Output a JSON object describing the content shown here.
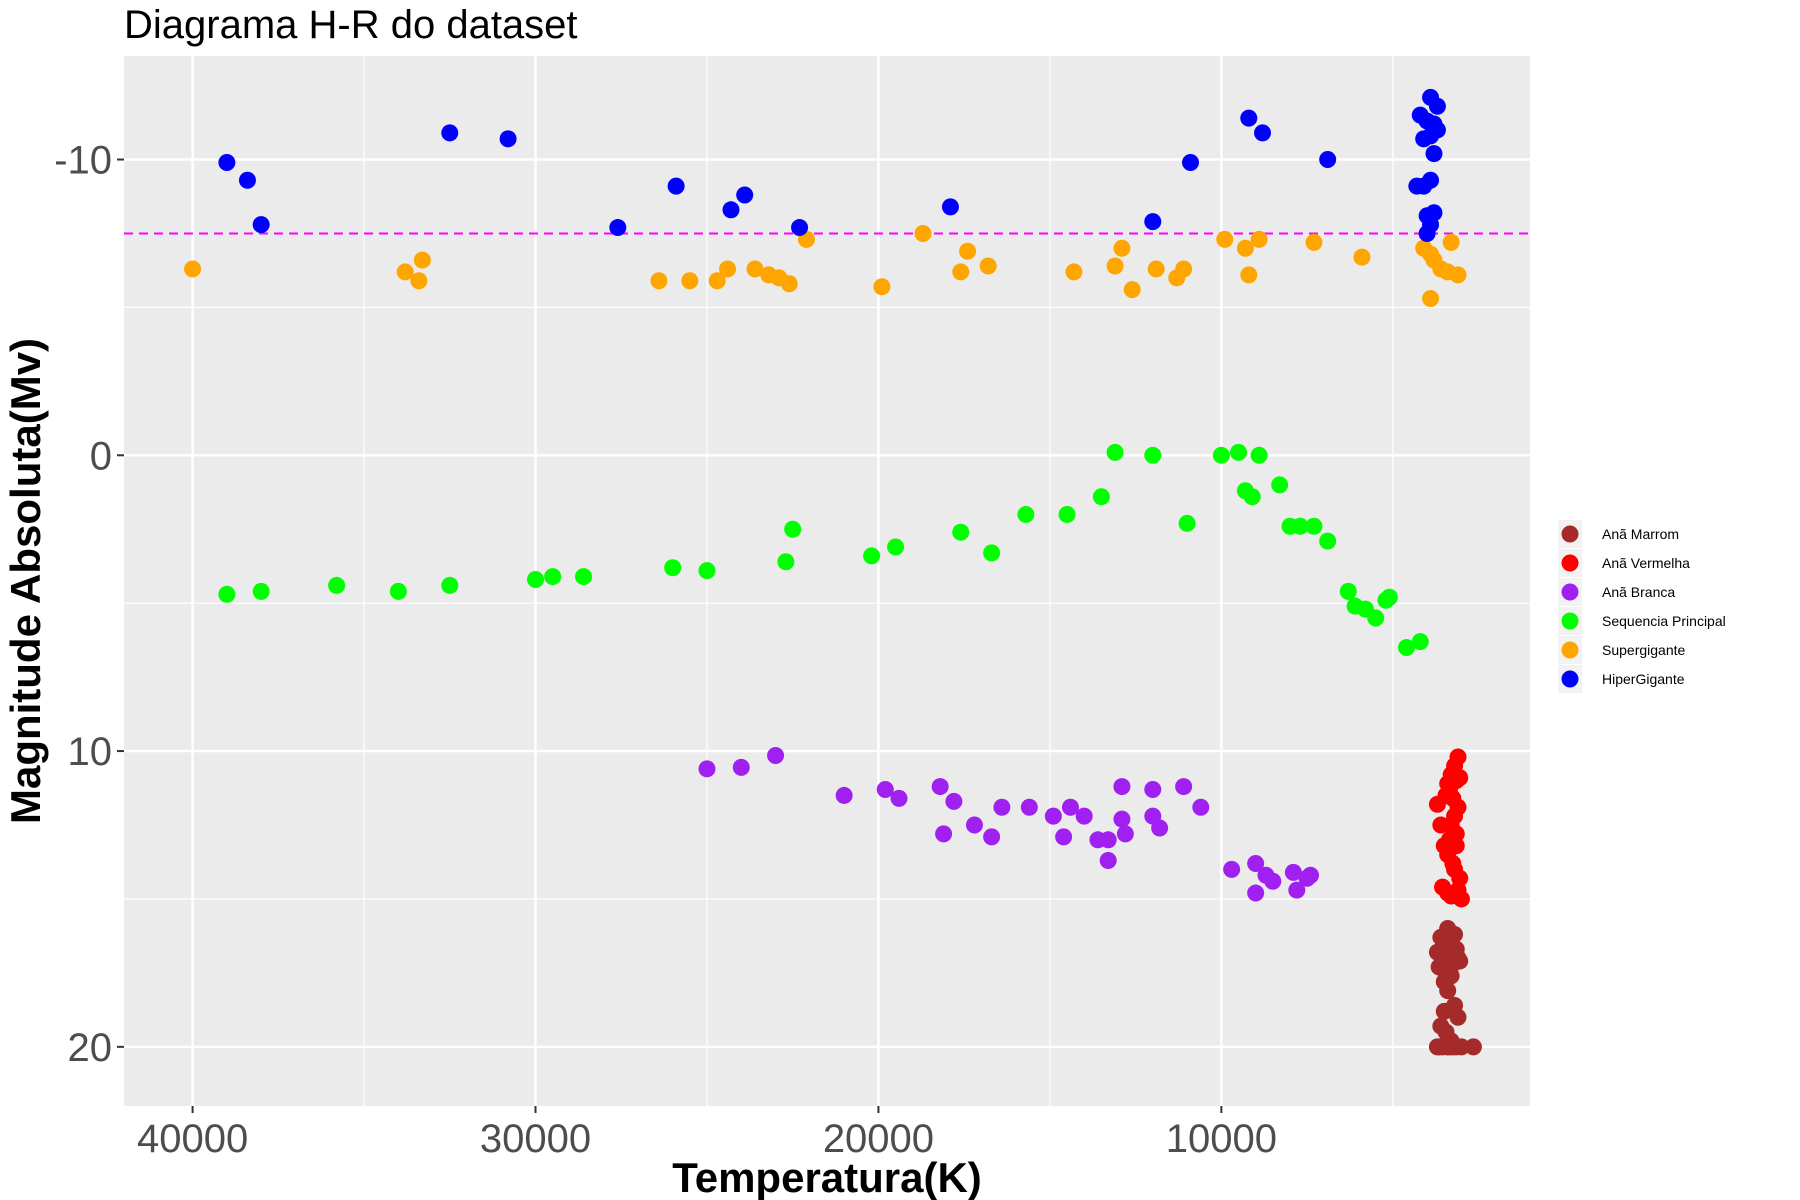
{
  "chart_data": {
    "type": "scatter",
    "title": "Diagrama H-R do dataset",
    "xlabel": "Temperatura(K)",
    "ylabel": "Magnitude Absoluta(Mv)",
    "xlim": [
      42000,
      1000
    ],
    "ylim": [
      22.0,
      -13.5
    ],
    "x_reversed": true,
    "y_reversed": true,
    "x_ticks": [
      40000,
      30000,
      20000,
      10000
    ],
    "x_tick_labels": [
      "40000",
      "30000",
      "20000",
      "10000"
    ],
    "y_ticks": [
      -10,
      0,
      10,
      20
    ],
    "y_tick_labels": [
      "-10",
      "0",
      "10",
      "20"
    ],
    "grid": true,
    "legend_position": "right",
    "reference_line": {
      "orientation": "horizontal",
      "y": -7.5,
      "color": "#ff00ff",
      "style": "dashed"
    },
    "series": [
      {
        "name": "Anã Marrom",
        "color": "#a52a2a",
        "points": [
          [
            3200,
            16.2
          ],
          [
            3300,
            16.5
          ],
          [
            3400,
            16.0
          ],
          [
            3500,
            16.6
          ],
          [
            3600,
            16.3
          ],
          [
            3700,
            16.8
          ],
          [
            3100,
            17.0
          ],
          [
            3250,
            17.2
          ],
          [
            3450,
            17.5
          ],
          [
            3550,
            16.9
          ],
          [
            3350,
            16.4
          ],
          [
            3150,
            16.7
          ],
          [
            3650,
            17.3
          ],
          [
            3050,
            17.1
          ],
          [
            3500,
            17.8
          ],
          [
            3300,
            17.6
          ],
          [
            3400,
            18.1
          ],
          [
            3200,
            18.6
          ],
          [
            3500,
            18.8
          ],
          [
            3100,
            19.0
          ],
          [
            3600,
            19.3
          ],
          [
            3450,
            19.5
          ],
          [
            3300,
            19.8
          ],
          [
            3650,
            20.0
          ],
          [
            3150,
            20.0
          ],
          [
            3400,
            20.0
          ],
          [
            3550,
            20.0
          ],
          [
            3000,
            20.0
          ],
          [
            3700,
            20.0
          ],
          [
            3350,
            20.0
          ],
          [
            2650,
            20.0
          ],
          [
            3250,
            20.0
          ]
        ]
      },
      {
        "name": "Anã Vermelha",
        "color": "#ff0000",
        "points": [
          [
            3100,
            10.2
          ],
          [
            3200,
            10.5
          ],
          [
            3300,
            10.8
          ],
          [
            3150,
            11.0
          ],
          [
            3350,
            11.3
          ],
          [
            3250,
            11.6
          ],
          [
            3050,
            10.9
          ],
          [
            3400,
            11.1
          ],
          [
            3100,
            11.9
          ],
          [
            3200,
            12.2
          ],
          [
            3300,
            12.5
          ],
          [
            3350,
            13.0
          ],
          [
            3150,
            13.2
          ],
          [
            3400,
            13.5
          ],
          [
            3250,
            13.8
          ],
          [
            3050,
            14.3
          ],
          [
            3100,
            14.7
          ],
          [
            3300,
            14.9
          ],
          [
            3400,
            14.8
          ],
          [
            3000,
            15.0
          ],
          [
            3500,
            13.2
          ],
          [
            3600,
            12.5
          ],
          [
            3700,
            11.8
          ],
          [
            3450,
            11.5
          ],
          [
            3150,
            12.8
          ],
          [
            3200,
            14.0
          ],
          [
            3550,
            14.6
          ]
        ]
      },
      {
        "name": "Anã Branca",
        "color": "#a020f0",
        "points": [
          [
            25000,
            10.6
          ],
          [
            24000,
            10.55
          ],
          [
            23000,
            10.15
          ],
          [
            21000,
            11.5
          ],
          [
            19800,
            11.3
          ],
          [
            19400,
            11.6
          ],
          [
            18200,
            11.2
          ],
          [
            18100,
            12.8
          ],
          [
            17800,
            11.7
          ],
          [
            17200,
            12.5
          ],
          [
            16700,
            12.9
          ],
          [
            16400,
            11.9
          ],
          [
            15600,
            11.9
          ],
          [
            14900,
            12.2
          ],
          [
            14400,
            11.9
          ],
          [
            14600,
            12.9
          ],
          [
            14000,
            12.2
          ],
          [
            13600,
            13.0
          ],
          [
            13300,
            13.0
          ],
          [
            13300,
            13.7
          ],
          [
            12900,
            11.2
          ],
          [
            12900,
            12.3
          ],
          [
            12800,
            12.8
          ],
          [
            12000,
            12.2
          ],
          [
            12000,
            11.3
          ],
          [
            11800,
            12.6
          ],
          [
            11100,
            11.2
          ],
          [
            10600,
            11.9
          ],
          [
            9700,
            14.0
          ],
          [
            9000,
            13.8
          ],
          [
            9000,
            14.8
          ],
          [
            8700,
            14.2
          ],
          [
            8500,
            14.4
          ],
          [
            7900,
            14.1
          ],
          [
            7800,
            14.7
          ],
          [
            7500,
            14.3
          ],
          [
            7400,
            14.2
          ]
        ]
      },
      {
        "name": "Sequencia Principal",
        "color": "#00ff00",
        "points": [
          [
            39000,
            4.7
          ],
          [
            38000,
            4.6
          ],
          [
            35800,
            4.4
          ],
          [
            34000,
            4.6
          ],
          [
            32500,
            4.4
          ],
          [
            30000,
            4.2
          ],
          [
            29500,
            4.1
          ],
          [
            28600,
            4.1
          ],
          [
            26000,
            3.8
          ],
          [
            25000,
            3.9
          ],
          [
            22700,
            3.6
          ],
          [
            22500,
            2.5
          ],
          [
            20200,
            3.4
          ],
          [
            19500,
            3.1
          ],
          [
            17600,
            2.6
          ],
          [
            16700,
            3.3
          ],
          [
            15700,
            2.0
          ],
          [
            14500,
            2.0
          ],
          [
            13500,
            1.4
          ],
          [
            13100,
            -0.1
          ],
          [
            12000,
            0.0
          ],
          [
            11000,
            2.3
          ],
          [
            10000,
            0.0
          ],
          [
            9500,
            -0.1
          ],
          [
            9300,
            1.2
          ],
          [
            9100,
            1.4
          ],
          [
            8900,
            0.0
          ],
          [
            8300,
            1.0
          ],
          [
            8000,
            2.4
          ],
          [
            7700,
            2.4
          ],
          [
            7300,
            2.4
          ],
          [
            6900,
            2.9
          ],
          [
            6300,
            4.6
          ],
          [
            6100,
            5.1
          ],
          [
            5800,
            5.2
          ],
          [
            5500,
            5.5
          ],
          [
            5200,
            4.9
          ],
          [
            5100,
            4.8
          ],
          [
            4600,
            6.5
          ],
          [
            4200,
            6.3
          ]
        ]
      },
      {
        "name": "Supergigante",
        "color": "#ffa500",
        "points": [
          [
            40000,
            -6.3
          ],
          [
            33800,
            -6.2
          ],
          [
            33400,
            -5.9
          ],
          [
            33300,
            -6.6
          ],
          [
            26400,
            -5.9
          ],
          [
            25500,
            -5.9
          ],
          [
            24700,
            -5.9
          ],
          [
            24400,
            -6.3
          ],
          [
            23600,
            -6.3
          ],
          [
            23200,
            -6.1
          ],
          [
            22900,
            -6.0
          ],
          [
            22600,
            -5.8
          ],
          [
            22100,
            -7.3
          ],
          [
            19900,
            -5.7
          ],
          [
            18700,
            -7.5
          ],
          [
            17600,
            -6.2
          ],
          [
            17400,
            -6.9
          ],
          [
            16800,
            -6.4
          ],
          [
            14300,
            -6.2
          ],
          [
            13100,
            -6.4
          ],
          [
            12900,
            -7.0
          ],
          [
            12600,
            -5.6
          ],
          [
            11900,
            -6.3
          ],
          [
            11300,
            -6.0
          ],
          [
            11100,
            -6.3
          ],
          [
            9900,
            -7.3
          ],
          [
            9200,
            -6.1
          ],
          [
            9300,
            -7.0
          ],
          [
            8900,
            -7.3
          ],
          [
            7300,
            -7.2
          ],
          [
            5900,
            -6.7
          ],
          [
            4100,
            -7.0
          ],
          [
            3900,
            -6.8
          ],
          [
            3800,
            -6.6
          ],
          [
            3600,
            -6.3
          ],
          [
            3400,
            -6.2
          ],
          [
            3100,
            -6.1
          ],
          [
            3900,
            -5.3
          ],
          [
            3300,
            -7.2
          ]
        ]
      },
      {
        "name": "HiperGigante",
        "color": "#0000ff",
        "points": [
          [
            39000,
            -9.9
          ],
          [
            38400,
            -9.3
          ],
          [
            38000,
            -7.8
          ],
          [
            32500,
            -10.9
          ],
          [
            30800,
            -10.7
          ],
          [
            27600,
            -7.7
          ],
          [
            25900,
            -9.1
          ],
          [
            24300,
            -8.3
          ],
          [
            23900,
            -8.8
          ],
          [
            22300,
            -7.7
          ],
          [
            17900,
            -8.4
          ],
          [
            12000,
            -7.9
          ],
          [
            10900,
            -9.9
          ],
          [
            9200,
            -11.4
          ],
          [
            8800,
            -10.9
          ],
          [
            6900,
            -10.0
          ],
          [
            4300,
            -9.1
          ],
          [
            4100,
            -9.1
          ],
          [
            3900,
            -9.3
          ],
          [
            4000,
            -8.1
          ],
          [
            3800,
            -8.2
          ],
          [
            3900,
            -7.8
          ],
          [
            4200,
            -11.5
          ],
          [
            4000,
            -11.3
          ],
          [
            3800,
            -11.2
          ],
          [
            3900,
            -10.8
          ],
          [
            4100,
            -10.7
          ],
          [
            3700,
            -11.0
          ],
          [
            3900,
            -12.1
          ],
          [
            3700,
            -11.8
          ],
          [
            3800,
            -10.2
          ],
          [
            4000,
            -7.5
          ]
        ]
      }
    ]
  }
}
